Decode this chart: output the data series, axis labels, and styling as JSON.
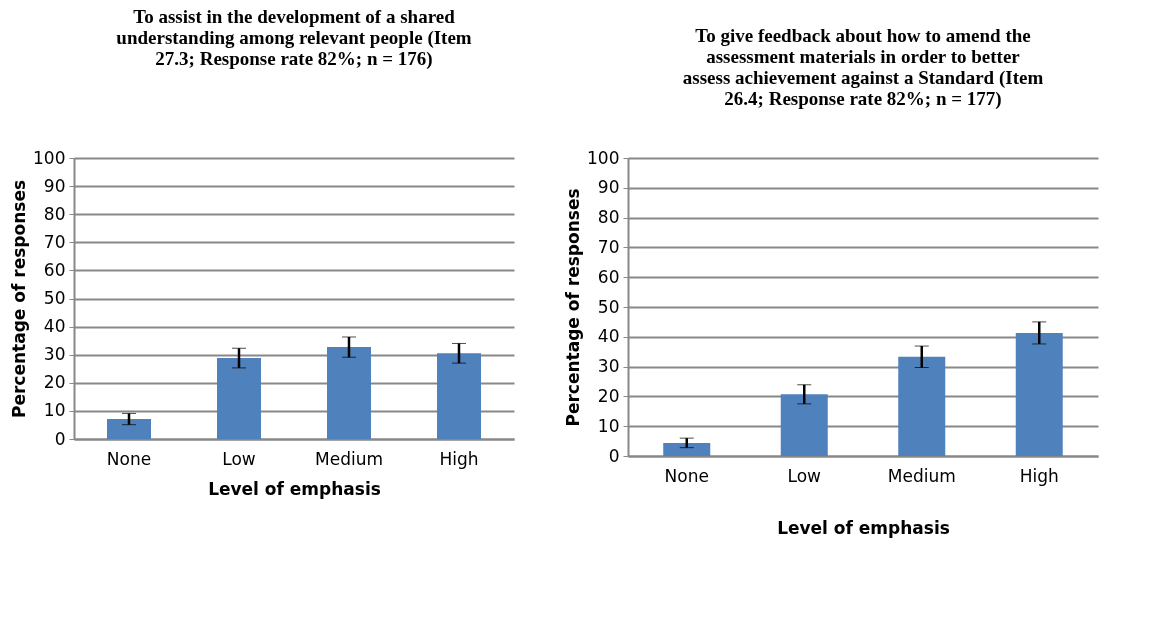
{
  "chart_data": [
    {
      "type": "bar",
      "title": "To assist in the development of a shared understanding among relevant people (Item 27.3; Response rate 82%; n = 176)",
      "xlabel": "Level of emphasis",
      "ylabel": "Percentage of responses",
      "categories": [
        "None",
        "Low",
        "Medium",
        "High"
      ],
      "values": [
        7.1,
        28.8,
        32.7,
        30.5
      ],
      "errors": [
        2,
        3.5,
        3.6,
        3.5
      ],
      "color": "#4f81bd",
      "ylim": [
        0,
        100
      ],
      "yticks": [
        0,
        10,
        20,
        30,
        40,
        50,
        60,
        70,
        80,
        90,
        100
      ],
      "grid": "y"
    },
    {
      "type": "bar",
      "title": "To give feedback about how to amend the assessment materials in order to better assess achievement against a Standard (Item 26.4; Response rate 82%; n = 177)",
      "xlabel": "Level of emphasis",
      "ylabel": "Percentage of responses",
      "categories": [
        "None",
        "Low",
        "Medium",
        "High"
      ],
      "values": [
        4.4,
        20.7,
        33.3,
        41.3
      ],
      "errors": [
        1.6,
        3.2,
        3.6,
        3.7
      ],
      "color": "#4f81bd",
      "ylim": [
        0,
        100
      ],
      "yticks": [
        0,
        10,
        20,
        30,
        40,
        50,
        60,
        70,
        80,
        90,
        100
      ],
      "grid": "y"
    }
  ]
}
